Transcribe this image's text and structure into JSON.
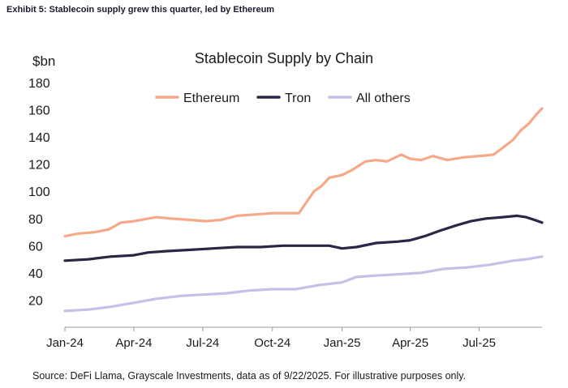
{
  "exhibit_title": "Exhibit 5: Stablecoin supply grew this quarter, led by Ethereum",
  "source": "Source: DeFi Llama, Grayscale Investments, data as of 9/22/2025. For illustrative purposes only.",
  "chart_data": {
    "type": "line",
    "title": "Stablecoin Supply by Chain",
    "ylabel": "$bn",
    "xlabel": "",
    "ylim": [
      0,
      180
    ],
    "yticks": [
      20,
      40,
      60,
      80,
      100,
      120,
      140,
      160,
      180
    ],
    "xlim": [
      "2024-01-01",
      "2025-09-22"
    ],
    "xticks": [
      {
        "date": "2024-01-01",
        "label": "Jan-24"
      },
      {
        "date": "2024-04-01",
        "label": "Apr-24"
      },
      {
        "date": "2024-07-01",
        "label": "Jul-24"
      },
      {
        "date": "2024-10-01",
        "label": "Oct-24"
      },
      {
        "date": "2025-01-01",
        "label": "Jan-25"
      },
      {
        "date": "2025-04-01",
        "label": "Apr-25"
      },
      {
        "date": "2025-07-01",
        "label": "Jul-25"
      }
    ],
    "grid": false,
    "legend": "top",
    "series": [
      {
        "name": "Ethereum",
        "color": "#f5a88a",
        "points": [
          [
            "2024-01-01",
            67
          ],
          [
            "2024-01-20",
            69
          ],
          [
            "2024-02-10",
            70
          ],
          [
            "2024-02-28",
            72
          ],
          [
            "2024-03-15",
            77
          ],
          [
            "2024-04-01",
            78
          ],
          [
            "2024-04-20",
            80
          ],
          [
            "2024-05-01",
            81
          ],
          [
            "2024-05-20",
            80
          ],
          [
            "2024-06-15",
            79
          ],
          [
            "2024-07-05",
            78
          ],
          [
            "2024-07-25",
            79
          ],
          [
            "2024-08-15",
            82
          ],
          [
            "2024-09-10",
            83
          ],
          [
            "2024-10-01",
            84
          ],
          [
            "2024-10-20",
            84
          ],
          [
            "2024-11-05",
            84
          ],
          [
            "2024-11-15",
            92
          ],
          [
            "2024-11-25",
            100
          ],
          [
            "2024-12-05",
            104
          ],
          [
            "2024-12-15",
            110
          ],
          [
            "2025-01-01",
            112
          ],
          [
            "2025-01-15",
            116
          ],
          [
            "2025-02-01",
            122
          ],
          [
            "2025-02-15",
            123
          ],
          [
            "2025-03-01",
            122
          ],
          [
            "2025-03-20",
            127
          ],
          [
            "2025-04-01",
            124
          ],
          [
            "2025-04-15",
            123
          ],
          [
            "2025-05-01",
            126
          ],
          [
            "2025-05-20",
            123
          ],
          [
            "2025-06-10",
            125
          ],
          [
            "2025-07-01",
            126
          ],
          [
            "2025-07-20",
            127
          ],
          [
            "2025-08-01",
            132
          ],
          [
            "2025-08-15",
            138
          ],
          [
            "2025-08-25",
            145
          ],
          [
            "2025-09-05",
            150
          ],
          [
            "2025-09-15",
            157
          ],
          [
            "2025-09-22",
            161
          ]
        ]
      },
      {
        "name": "Tron",
        "color": "#2a2745",
        "points": [
          [
            "2024-01-01",
            49
          ],
          [
            "2024-02-01",
            50
          ],
          [
            "2024-03-01",
            52
          ],
          [
            "2024-04-01",
            53
          ],
          [
            "2024-04-20",
            55
          ],
          [
            "2024-05-15",
            56
          ],
          [
            "2024-06-15",
            57
          ],
          [
            "2024-07-15",
            58
          ],
          [
            "2024-08-15",
            59
          ],
          [
            "2024-09-15",
            59
          ],
          [
            "2024-10-15",
            60
          ],
          [
            "2024-11-15",
            60
          ],
          [
            "2024-12-15",
            60
          ],
          [
            "2025-01-01",
            58
          ],
          [
            "2025-01-20",
            59
          ],
          [
            "2025-02-15",
            62
          ],
          [
            "2025-03-15",
            63
          ],
          [
            "2025-04-01",
            64
          ],
          [
            "2025-04-20",
            67
          ],
          [
            "2025-05-10",
            71
          ],
          [
            "2025-06-01",
            75
          ],
          [
            "2025-06-20",
            78
          ],
          [
            "2025-07-10",
            80
          ],
          [
            "2025-08-01",
            81
          ],
          [
            "2025-08-20",
            82
          ],
          [
            "2025-09-01",
            81
          ],
          [
            "2025-09-12",
            79
          ],
          [
            "2025-09-22",
            77
          ]
        ]
      },
      {
        "name": "All others",
        "color": "#c4c1e6",
        "points": [
          [
            "2024-01-01",
            12
          ],
          [
            "2024-02-01",
            13
          ],
          [
            "2024-03-01",
            15
          ],
          [
            "2024-04-01",
            18
          ],
          [
            "2024-05-01",
            21
          ],
          [
            "2024-06-01",
            23
          ],
          [
            "2024-07-01",
            24
          ],
          [
            "2024-08-01",
            25
          ],
          [
            "2024-09-01",
            27
          ],
          [
            "2024-10-01",
            28
          ],
          [
            "2024-11-01",
            28
          ],
          [
            "2024-12-01",
            31
          ],
          [
            "2025-01-01",
            33
          ],
          [
            "2025-01-20",
            37
          ],
          [
            "2025-02-15",
            38
          ],
          [
            "2025-03-15",
            39
          ],
          [
            "2025-04-15",
            40
          ],
          [
            "2025-05-15",
            43
          ],
          [
            "2025-06-15",
            44
          ],
          [
            "2025-07-15",
            46
          ],
          [
            "2025-08-15",
            49
          ],
          [
            "2025-09-01",
            50
          ],
          [
            "2025-09-22",
            52
          ]
        ]
      }
    ]
  }
}
